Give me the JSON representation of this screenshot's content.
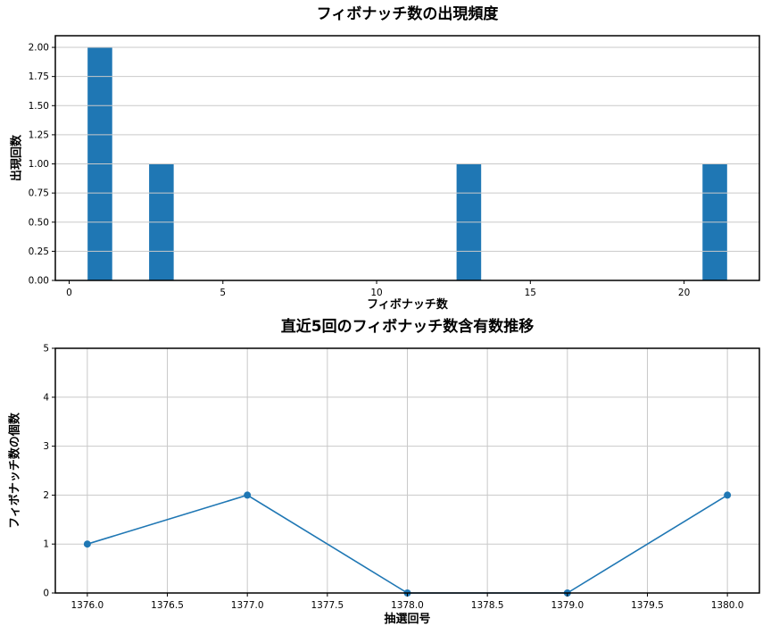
{
  "figure": {
    "background": "#ffffff",
    "accent": "#1f77b4",
    "grid_color": "#c9c9c9",
    "spine_color": "#000000"
  },
  "chart_data": [
    {
      "type": "bar",
      "title": "フィボナッチ数の出現頻度",
      "xlabel": "フィボナッチ数",
      "ylabel": "出現回数",
      "x": [
        1,
        3,
        13,
        21
      ],
      "values": [
        2,
        1,
        1,
        1
      ],
      "bar_width": 0.8,
      "color": "#1f77b4",
      "xlim": [
        -0.45,
        22.45
      ],
      "ylim": [
        0,
        2.1
      ],
      "xticks": [
        0,
        5,
        10,
        15,
        20
      ],
      "xtick_labels": [
        "0",
        "5",
        "10",
        "15",
        "20"
      ],
      "yticks": [
        0,
        0.25,
        0.5,
        0.75,
        1,
        1.25,
        1.5,
        1.75,
        2
      ],
      "ytick_labels": [
        "0.00",
        "0.25",
        "0.50",
        "0.75",
        "1.00",
        "1.25",
        "1.50",
        "1.75",
        "2.00"
      ],
      "grid": "horizontal",
      "legend": "none"
    },
    {
      "type": "line",
      "title": "直近5回のフィボナッチ数含有数推移",
      "xlabel": "抽選回号",
      "ylabel": "フィボナッチ数の個数",
      "x": [
        1376,
        1377,
        1378,
        1379,
        1380
      ],
      "values": [
        1,
        2,
        0,
        0,
        2
      ],
      "color": "#1f77b4",
      "marker": "circle",
      "xlim": [
        1375.8,
        1380.2
      ],
      "ylim": [
        0,
        5
      ],
      "xticks": [
        1376,
        1376.5,
        1377,
        1377.5,
        1378,
        1378.5,
        1379,
        1379.5,
        1380
      ],
      "xtick_labels": [
        "1376.0",
        "1376.5",
        "1377.0",
        "1377.5",
        "1378.0",
        "1378.5",
        "1379.0",
        "1379.5",
        "1380.0"
      ],
      "yticks": [
        0,
        1,
        2,
        3,
        4,
        5
      ],
      "ytick_labels": [
        "0",
        "1",
        "2",
        "3",
        "4",
        "5"
      ],
      "grid": "both",
      "legend": "none"
    }
  ]
}
